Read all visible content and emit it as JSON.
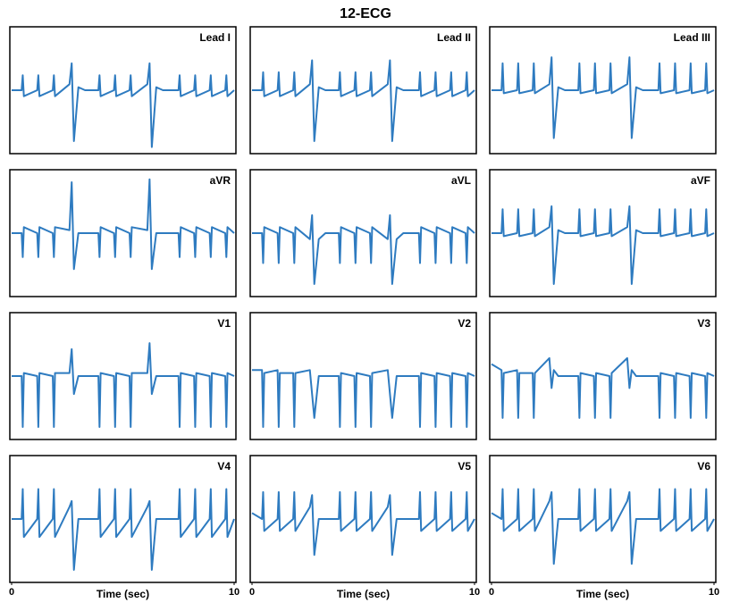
{
  "title": "12-ECG",
  "chart_data": [
    {
      "type": "line",
      "title": "Lead I",
      "xlim": [
        0,
        10
      ],
      "ylim": [
        -1,
        1
      ],
      "color": "#2e7bc0",
      "x": [
        0,
        0.45,
        0.5,
        0.55,
        1.15,
        1.2,
        1.25,
        1.85,
        1.9,
        1.95,
        2.6,
        2.7,
        2.8,
        3.0,
        3.3,
        3.9,
        3.95,
        4.0,
        4.6,
        4.65,
        4.7,
        5.3,
        5.35,
        5.4,
        6.1,
        6.2,
        6.3,
        6.5,
        6.8,
        7.5,
        7.55,
        7.6,
        8.2,
        8.25,
        8.3,
        8.9,
        8.95,
        9.0,
        9.6,
        9.65,
        9.7,
        10
      ],
      "values": [
        0,
        0,
        0.25,
        -0.1,
        0,
        0.25,
        -0.1,
        0,
        0.25,
        -0.1,
        0.1,
        0.45,
        -0.85,
        0.05,
        0,
        0,
        0.25,
        -0.1,
        0,
        0.25,
        -0.1,
        0,
        0.25,
        -0.1,
        0.1,
        0.45,
        -0.95,
        0.05,
        0,
        0,
        0.25,
        -0.1,
        0,
        0.25,
        -0.1,
        0,
        0.25,
        -0.1,
        0,
        0.25,
        -0.1,
        0
      ]
    },
    {
      "type": "line",
      "title": "Lead II",
      "xlim": [
        0,
        10
      ],
      "ylim": [
        -1,
        1
      ],
      "color": "#2e7bc0",
      "x": [
        0,
        0.45,
        0.5,
        0.55,
        1.15,
        1.2,
        1.25,
        1.85,
        1.9,
        1.95,
        2.6,
        2.7,
        2.8,
        3.0,
        3.3,
        3.9,
        3.95,
        4.0,
        4.6,
        4.65,
        4.7,
        5.3,
        5.35,
        5.4,
        6.1,
        6.2,
        6.3,
        6.5,
        6.8,
        7.5,
        7.55,
        7.6,
        8.2,
        8.25,
        8.3,
        8.9,
        8.95,
        9.0,
        9.6,
        9.65,
        9.7,
        10
      ],
      "values": [
        0,
        0,
        0.3,
        -0.1,
        0,
        0.3,
        -0.1,
        0,
        0.3,
        -0.1,
        0.1,
        0.5,
        -0.85,
        0.05,
        0,
        0,
        0.3,
        -0.1,
        0,
        0.3,
        -0.1,
        0,
        0.3,
        -0.1,
        0.1,
        0.5,
        -0.85,
        0.05,
        0,
        0,
        0.3,
        -0.1,
        0,
        0.3,
        -0.1,
        0,
        0.3,
        -0.1,
        0,
        0.3,
        -0.1,
        0
      ]
    },
    {
      "type": "line",
      "title": "Lead III",
      "xlim": [
        0,
        10
      ],
      "ylim": [
        -1,
        1
      ],
      "color": "#2e7bc0",
      "x": [
        0,
        0.45,
        0.5,
        0.55,
        1.15,
        1.2,
        1.25,
        1.85,
        1.9,
        1.95,
        2.6,
        2.7,
        2.8,
        3.0,
        3.3,
        3.9,
        3.95,
        4.0,
        4.6,
        4.65,
        4.7,
        5.3,
        5.35,
        5.4,
        6.1,
        6.2,
        6.3,
        6.5,
        6.8,
        7.5,
        7.55,
        7.6,
        8.2,
        8.25,
        8.3,
        8.9,
        8.95,
        9.0,
        9.6,
        9.65,
        9.7,
        10
      ],
      "values": [
        0,
        0,
        0.45,
        -0.05,
        0,
        0.45,
        -0.05,
        0,
        0.45,
        -0.05,
        0.1,
        0.55,
        -0.8,
        0.05,
        0,
        0,
        0.45,
        -0.05,
        0,
        0.45,
        -0.05,
        0,
        0.45,
        -0.05,
        0.1,
        0.55,
        -0.8,
        0.05,
        0,
        0,
        0.45,
        -0.05,
        0,
        0.45,
        -0.05,
        0,
        0.45,
        -0.05,
        0,
        0.45,
        -0.05,
        0
      ]
    },
    {
      "type": "line",
      "title": "aVR",
      "xlim": [
        0,
        10
      ],
      "ylim": [
        -1,
        1
      ],
      "color": "#2e7bc0",
      "x": [
        0,
        0.45,
        0.5,
        0.55,
        1.15,
        1.2,
        1.25,
        1.85,
        1.9,
        1.95,
        2.6,
        2.7,
        2.8,
        3.0,
        3.3,
        3.9,
        3.95,
        4.0,
        4.6,
        4.65,
        4.7,
        5.3,
        5.35,
        5.4,
        6.1,
        6.2,
        6.3,
        6.5,
        6.8,
        7.5,
        7.55,
        7.6,
        8.2,
        8.25,
        8.3,
        8.9,
        8.95,
        9.0,
        9.6,
        9.65,
        9.7,
        10
      ],
      "values": [
        0,
        0,
        -0.4,
        0.1,
        0,
        -0.4,
        0.1,
        0,
        -0.4,
        0.1,
        0.05,
        0.85,
        -0.6,
        0,
        0,
        0,
        -0.4,
        0.1,
        0,
        -0.4,
        0.1,
        0,
        -0.4,
        0.1,
        0.05,
        0.9,
        -0.6,
        0,
        0,
        0,
        -0.4,
        0.1,
        0,
        -0.4,
        0.1,
        0,
        -0.4,
        0.1,
        0,
        -0.4,
        0.1,
        0
      ]
    },
    {
      "type": "line",
      "title": "aVL",
      "xlim": [
        0,
        10
      ],
      "ylim": [
        -1,
        1
      ],
      "color": "#2e7bc0",
      "x": [
        0,
        0.45,
        0.5,
        0.55,
        1.15,
        1.2,
        1.25,
        1.85,
        1.9,
        1.95,
        2.6,
        2.7,
        2.8,
        3.0,
        3.3,
        3.9,
        3.95,
        4.0,
        4.6,
        4.65,
        4.7,
        5.3,
        5.35,
        5.4,
        6.1,
        6.2,
        6.3,
        6.5,
        6.8,
        7.5,
        7.55,
        7.6,
        8.2,
        8.25,
        8.3,
        8.9,
        8.95,
        9.0,
        9.6,
        9.65,
        9.7,
        10
      ],
      "values": [
        0,
        0,
        -0.5,
        0.1,
        0,
        -0.5,
        0.1,
        0,
        -0.5,
        0.1,
        -0.1,
        0.3,
        -0.85,
        -0.1,
        0,
        0,
        -0.5,
        0.1,
        0,
        -0.5,
        0.1,
        0,
        -0.5,
        0.1,
        -0.1,
        0.3,
        -0.85,
        -0.1,
        0,
        0,
        -0.5,
        0.1,
        0,
        -0.5,
        0.1,
        0,
        -0.5,
        0.1,
        0,
        -0.5,
        0.1,
        0
      ]
    },
    {
      "type": "line",
      "title": "aVF",
      "xlim": [
        0,
        10
      ],
      "ylim": [
        -1,
        1
      ],
      "color": "#2e7bc0",
      "x": [
        0,
        0.45,
        0.5,
        0.55,
        1.15,
        1.2,
        1.25,
        1.85,
        1.9,
        1.95,
        2.6,
        2.7,
        2.8,
        3.0,
        3.3,
        3.9,
        3.95,
        4.0,
        4.6,
        4.65,
        4.7,
        5.3,
        5.35,
        5.4,
        6.1,
        6.2,
        6.3,
        6.5,
        6.8,
        7.5,
        7.55,
        7.6,
        8.2,
        8.25,
        8.3,
        8.9,
        8.95,
        9.0,
        9.6,
        9.65,
        9.7,
        10
      ],
      "values": [
        0,
        0,
        0.4,
        -0.05,
        0,
        0.4,
        -0.05,
        0,
        0.4,
        -0.05,
        0.1,
        0.45,
        -0.85,
        0.05,
        0,
        0,
        0.4,
        -0.05,
        0,
        0.4,
        -0.05,
        0,
        0.4,
        -0.05,
        0.1,
        0.45,
        -0.85,
        0.05,
        0,
        0,
        0.4,
        -0.05,
        0,
        0.4,
        -0.05,
        0,
        0.4,
        -0.05,
        0,
        0.4,
        -0.05,
        0
      ]
    },
    {
      "type": "line",
      "title": "V1",
      "xlim": [
        0,
        10
      ],
      "ylim": [
        -1,
        1
      ],
      "color": "#2e7bc0",
      "x": [
        0,
        0.45,
        0.5,
        0.55,
        1.15,
        1.2,
        1.25,
        1.85,
        1.9,
        1.95,
        2.6,
        2.7,
        2.8,
        3.0,
        3.3,
        3.9,
        3.95,
        4.0,
        4.6,
        4.65,
        4.7,
        5.3,
        5.35,
        5.4,
        6.1,
        6.2,
        6.3,
        6.5,
        6.8,
        7.5,
        7.55,
        7.6,
        8.2,
        8.25,
        8.3,
        8.9,
        8.95,
        9.0,
        9.6,
        9.65,
        9.7,
        10
      ],
      "values": [
        0,
        0,
        -0.85,
        0.05,
        0,
        -0.85,
        0.05,
        0,
        -0.85,
        0.05,
        0.05,
        0.45,
        -0.3,
        0,
        0,
        0,
        -0.85,
        0.05,
        0,
        -0.85,
        0.05,
        0,
        -0.85,
        0.05,
        0.05,
        0.55,
        -0.3,
        0,
        0,
        0,
        -0.85,
        0.05,
        0,
        -0.85,
        0.05,
        0,
        -0.85,
        0.05,
        0,
        -0.85,
        0.05,
        0
      ]
    },
    {
      "type": "line",
      "title": "V2",
      "xlim": [
        0,
        10
      ],
      "ylim": [
        -1,
        1
      ],
      "color": "#2e7bc0",
      "x": [
        0,
        0.45,
        0.5,
        0.55,
        1.15,
        1.2,
        1.25,
        1.85,
        1.9,
        1.95,
        2.6,
        2.7,
        2.8,
        3.0,
        3.3,
        3.9,
        3.95,
        4.0,
        4.6,
        4.65,
        4.7,
        5.3,
        5.35,
        5.4,
        6.1,
        6.2,
        6.3,
        6.5,
        6.8,
        7.5,
        7.55,
        7.6,
        8.2,
        8.25,
        8.3,
        8.9,
        8.95,
        9.0,
        9.6,
        9.65,
        9.7,
        10
      ],
      "values": [
        0.1,
        0.1,
        -0.85,
        0.05,
        0.1,
        -0.85,
        0.05,
        0.05,
        -0.85,
        0.05,
        0.1,
        -0.3,
        -0.7,
        0,
        0,
        0,
        -0.85,
        0.05,
        0,
        -0.85,
        0.05,
        0,
        -0.85,
        0.05,
        0.1,
        -0.3,
        -0.7,
        0,
        0,
        0,
        -0.85,
        0.05,
        0,
        -0.85,
        0.05,
        0,
        -0.85,
        0.05,
        0,
        -0.85,
        0.05,
        0
      ]
    },
    {
      "type": "line",
      "title": "V3",
      "xlim": [
        0,
        10
      ],
      "ylim": [
        -1,
        1
      ],
      "color": "#2e7bc0",
      "x": [
        0,
        0.45,
        0.5,
        0.55,
        1.15,
        1.2,
        1.25,
        1.85,
        1.9,
        1.95,
        2.6,
        2.7,
        2.8,
        3.0,
        3.3,
        3.9,
        3.95,
        4.0,
        4.6,
        4.65,
        4.7,
        5.3,
        5.35,
        5.4,
        6.1,
        6.2,
        6.3,
        6.5,
        6.8,
        7.5,
        7.55,
        7.6,
        8.2,
        8.25,
        8.3,
        8.9,
        8.95,
        9.0,
        9.6,
        9.65,
        9.7,
        10
      ],
      "values": [
        0.2,
        0.1,
        -0.7,
        0.05,
        0.1,
        -0.7,
        0.05,
        0.05,
        -0.7,
        0.05,
        0.3,
        -0.2,
        0.1,
        0,
        0,
        0,
        -0.7,
        0.05,
        0,
        -0.7,
        0.05,
        0,
        -0.7,
        0.05,
        0.3,
        -0.2,
        0.1,
        0,
        0,
        0,
        -0.7,
        0.05,
        0,
        -0.7,
        0.05,
        0,
        -0.7,
        0.05,
        0,
        -0.7,
        0.05,
        0
      ]
    },
    {
      "type": "line",
      "title": "V4",
      "xlim": [
        0,
        10
      ],
      "ylim": [
        -1,
        1
      ],
      "xticks": [
        0,
        10
      ],
      "xlabel": "Time (sec)",
      "color": "#2e7bc0",
      "x": [
        0,
        0.45,
        0.5,
        0.55,
        1.15,
        1.2,
        1.25,
        1.85,
        1.9,
        1.95,
        2.6,
        2.7,
        2.8,
        3.0,
        3.3,
        3.9,
        3.95,
        4.0,
        4.6,
        4.65,
        4.7,
        5.3,
        5.35,
        5.4,
        6.1,
        6.2,
        6.3,
        6.5,
        6.8,
        7.5,
        7.55,
        7.6,
        8.2,
        8.25,
        8.3,
        8.9,
        8.95,
        9.0,
        9.6,
        9.65,
        9.7,
        10
      ],
      "values": [
        0,
        0,
        0.5,
        -0.3,
        0,
        0.5,
        -0.3,
        0,
        0.5,
        -0.3,
        0.2,
        0.3,
        -0.85,
        0,
        0,
        0,
        0.5,
        -0.3,
        0,
        0.5,
        -0.3,
        0,
        0.5,
        -0.3,
        0.2,
        0.3,
        -0.85,
        0,
        0,
        0,
        0.5,
        -0.3,
        0,
        0.5,
        -0.3,
        0,
        0.5,
        -0.3,
        0,
        0.5,
        -0.3,
        0
      ]
    },
    {
      "type": "line",
      "title": "V5",
      "xlim": [
        0,
        10
      ],
      "ylim": [
        -1,
        1
      ],
      "xticks": [
        0,
        10
      ],
      "xlabel": "Time (sec)",
      "color": "#2e7bc0",
      "x": [
        0,
        0.45,
        0.5,
        0.55,
        1.15,
        1.2,
        1.25,
        1.85,
        1.9,
        1.95,
        2.6,
        2.7,
        2.8,
        3.0,
        3.3,
        3.9,
        3.95,
        4.0,
        4.6,
        4.65,
        4.7,
        5.3,
        5.35,
        5.4,
        6.1,
        6.2,
        6.3,
        6.5,
        6.8,
        7.5,
        7.55,
        7.6,
        8.2,
        8.25,
        8.3,
        8.9,
        8.95,
        9.0,
        9.6,
        9.65,
        9.7,
        10
      ],
      "values": [
        0.1,
        0,
        0.45,
        -0.2,
        0,
        0.45,
        -0.2,
        0,
        0.45,
        -0.2,
        0.2,
        0.4,
        -0.6,
        0,
        0,
        0,
        0.45,
        -0.2,
        0,
        0.45,
        -0.2,
        0,
        0.45,
        -0.2,
        0.2,
        0.4,
        -0.6,
        0,
        0,
        0,
        0.45,
        -0.2,
        0,
        0.45,
        -0.2,
        0,
        0.45,
        -0.2,
        0,
        0.45,
        -0.2,
        0
      ]
    },
    {
      "type": "line",
      "title": "V6",
      "xlim": [
        0,
        10
      ],
      "ylim": [
        -1,
        1
      ],
      "xticks": [
        0,
        10
      ],
      "xlabel": "Time (sec)",
      "color": "#2e7bc0",
      "x": [
        0,
        0.45,
        0.5,
        0.55,
        1.15,
        1.2,
        1.25,
        1.85,
        1.9,
        1.95,
        2.6,
        2.7,
        2.8,
        3.0,
        3.3,
        3.9,
        3.95,
        4.0,
        4.6,
        4.65,
        4.7,
        5.3,
        5.35,
        5.4,
        6.1,
        6.2,
        6.3,
        6.5,
        6.8,
        7.5,
        7.55,
        7.6,
        8.2,
        8.25,
        8.3,
        8.9,
        8.95,
        9.0,
        9.6,
        9.65,
        9.7,
        10
      ],
      "values": [
        0.1,
        0,
        0.5,
        -0.2,
        0,
        0.5,
        -0.2,
        0,
        0.5,
        -0.2,
        0.3,
        0.45,
        -0.75,
        0,
        0,
        0,
        0.5,
        -0.2,
        0,
        0.5,
        -0.2,
        0,
        0.5,
        -0.2,
        0.3,
        0.45,
        -0.75,
        0,
        0,
        0,
        0.5,
        -0.2,
        0,
        0.5,
        -0.2,
        0,
        0.5,
        -0.2,
        0,
        0.5,
        -0.2,
        0
      ]
    }
  ]
}
